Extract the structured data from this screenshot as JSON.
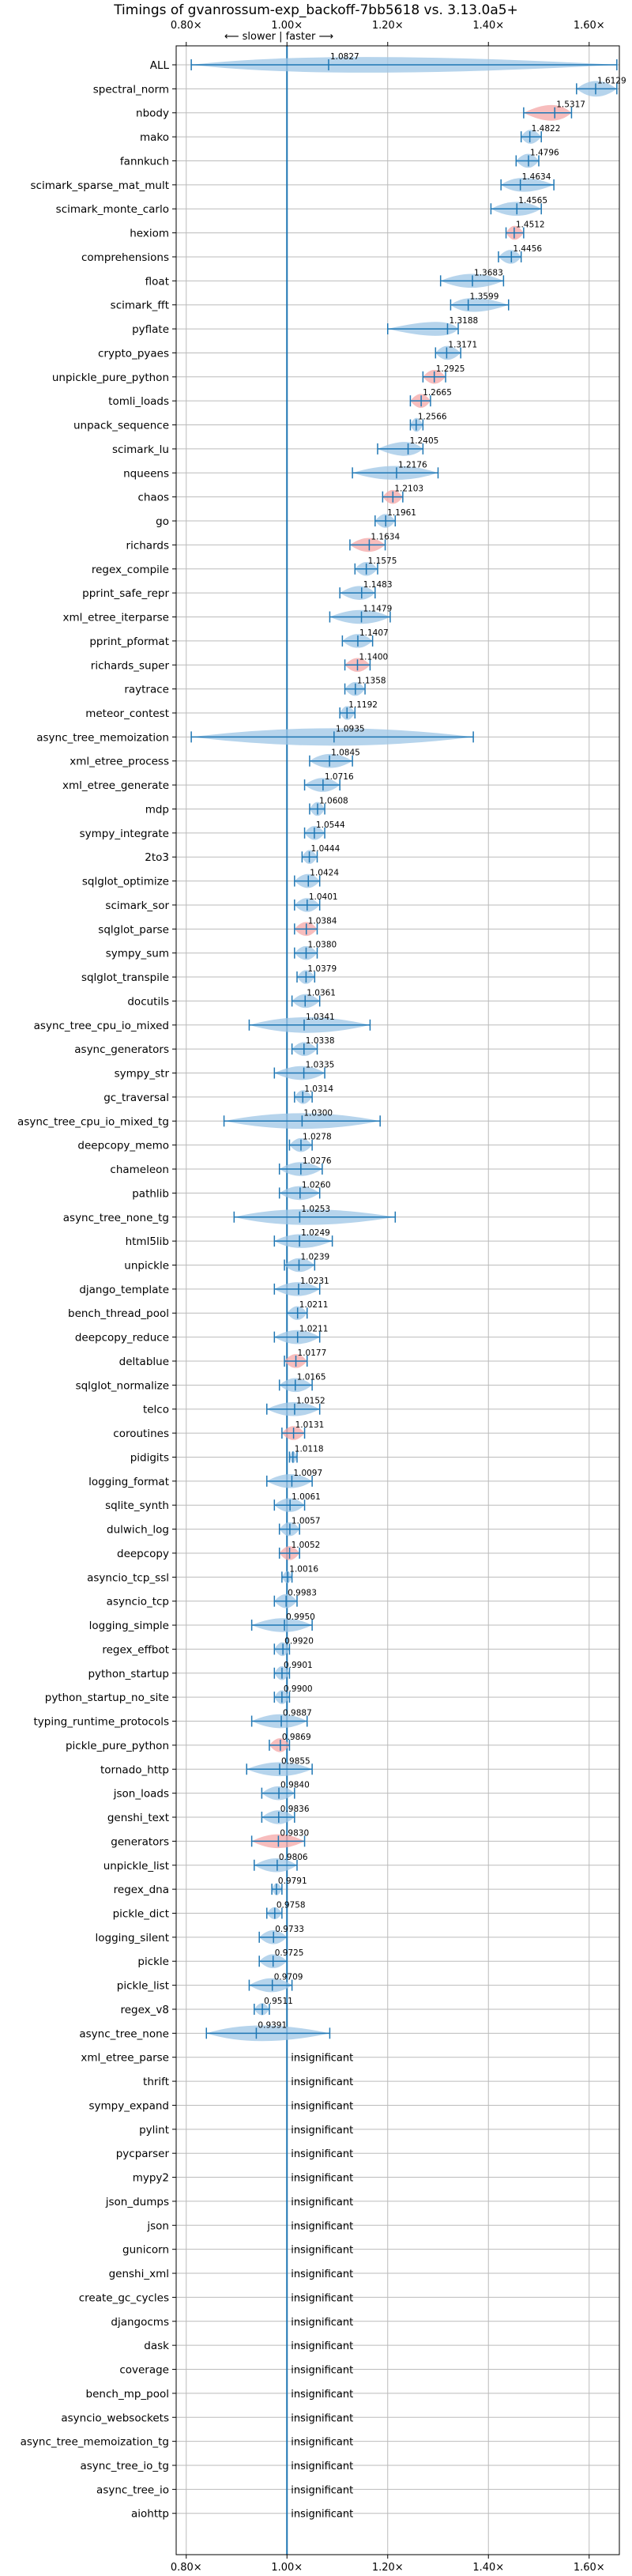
{
  "chart_data": {
    "type": "violin",
    "title": "Timings of gvanrossum-exp_backoff-7bb5618 vs. 3.13.0a5+",
    "direction_label": "⟵ slower | faster ⟶",
    "xlim": [
      0.78,
      1.66
    ],
    "xticks": [
      0.8,
      1.0,
      1.2,
      1.4,
      1.6
    ],
    "xtick_labels": [
      "0.80×",
      "1.00×",
      "1.20×",
      "1.40×",
      "1.60×"
    ],
    "reference_x": 1.0,
    "grid": true,
    "insignificant_label": "insignificant",
    "colors": {
      "faster": "#9ec6e6",
      "slower": "#f4a7a7",
      "whisker": "#1f77b4",
      "reference": "#1f77b4",
      "grid": "#bbbbbb"
    },
    "benchmarks": [
      {
        "name": "ALL",
        "value": 1.0827,
        "label": "1.0827",
        "lo": 0.81,
        "hi": 1.655,
        "width": 0.9,
        "slower": false
      },
      {
        "name": "spectral_norm",
        "value": 1.6129,
        "label": "1.6129",
        "lo": 1.575,
        "hi": 1.655,
        "width": 0.9,
        "slower": false
      },
      {
        "name": "nbody",
        "value": 1.5317,
        "label": "1.5317",
        "lo": 1.47,
        "hi": 1.565,
        "width": 0.9,
        "slower": true
      },
      {
        "name": "mako",
        "value": 1.4822,
        "label": "1.4822",
        "lo": 1.465,
        "hi": 1.505,
        "width": 0.8,
        "slower": false
      },
      {
        "name": "fannkuch",
        "value": 1.4796,
        "label": "1.4796",
        "lo": 1.455,
        "hi": 1.5,
        "width": 0.8,
        "slower": false
      },
      {
        "name": "scimark_sparse_mat_mult",
        "value": 1.4634,
        "label": "1.4634",
        "lo": 1.425,
        "hi": 1.53,
        "width": 0.8,
        "slower": false
      },
      {
        "name": "scimark_monte_carlo",
        "value": 1.4565,
        "label": "1.4565",
        "lo": 1.405,
        "hi": 1.505,
        "width": 0.8,
        "slower": false
      },
      {
        "name": "hexiom",
        "value": 1.4512,
        "label": "1.4512",
        "lo": 1.435,
        "hi": 1.47,
        "width": 0.8,
        "slower": true
      },
      {
        "name": "comprehensions",
        "value": 1.4456,
        "label": "1.4456",
        "lo": 1.42,
        "hi": 1.465,
        "width": 0.8,
        "slower": false
      },
      {
        "name": "float",
        "value": 1.3683,
        "label": "1.3683",
        "lo": 1.305,
        "hi": 1.43,
        "width": 0.8,
        "slower": false
      },
      {
        "name": "scimark_fft",
        "value": 1.3599,
        "label": "1.3599",
        "lo": 1.325,
        "hi": 1.44,
        "width": 0.8,
        "slower": false
      },
      {
        "name": "pyflate",
        "value": 1.3188,
        "label": "1.3188",
        "lo": 1.2,
        "hi": 1.34,
        "width": 0.8,
        "slower": false
      },
      {
        "name": "crypto_pyaes",
        "value": 1.3171,
        "label": "1.3171",
        "lo": 1.295,
        "hi": 1.345,
        "width": 0.8,
        "slower": false
      },
      {
        "name": "unpickle_pure_python",
        "value": 1.2925,
        "label": "1.2925",
        "lo": 1.27,
        "hi": 1.315,
        "width": 0.8,
        "slower": true
      },
      {
        "name": "tomli_loads",
        "value": 1.2665,
        "label": "1.2665",
        "lo": 1.245,
        "hi": 1.285,
        "width": 0.8,
        "slower": true
      },
      {
        "name": "unpack_sequence",
        "value": 1.2566,
        "label": "1.2566",
        "lo": 1.245,
        "hi": 1.27,
        "width": 0.8,
        "slower": false
      },
      {
        "name": "scimark_lu",
        "value": 1.2405,
        "label": "1.2405",
        "lo": 1.18,
        "hi": 1.27,
        "width": 0.8,
        "slower": false
      },
      {
        "name": "nqueens",
        "value": 1.2176,
        "label": "1.2176",
        "lo": 1.13,
        "hi": 1.3,
        "width": 0.8,
        "slower": false
      },
      {
        "name": "chaos",
        "value": 1.2103,
        "label": "1.2103",
        "lo": 1.19,
        "hi": 1.23,
        "width": 0.8,
        "slower": true
      },
      {
        "name": "go",
        "value": 1.1961,
        "label": "1.1961",
        "lo": 1.175,
        "hi": 1.215,
        "width": 0.8,
        "slower": false
      },
      {
        "name": "richards",
        "value": 1.1634,
        "label": "1.1634",
        "lo": 1.125,
        "hi": 1.195,
        "width": 0.8,
        "slower": true
      },
      {
        "name": "regex_compile",
        "value": 1.1575,
        "label": "1.1575",
        "lo": 1.135,
        "hi": 1.18,
        "width": 0.8,
        "slower": false
      },
      {
        "name": "pprint_safe_repr",
        "value": 1.1483,
        "label": "1.1483",
        "lo": 1.105,
        "hi": 1.175,
        "width": 0.8,
        "slower": false
      },
      {
        "name": "xml_etree_iterparse",
        "value": 1.1479,
        "label": "1.1479",
        "lo": 1.085,
        "hi": 1.205,
        "width": 0.8,
        "slower": false
      },
      {
        "name": "pprint_pformat",
        "value": 1.1407,
        "label": "1.1407",
        "lo": 1.11,
        "hi": 1.17,
        "width": 0.8,
        "slower": false
      },
      {
        "name": "richards_super",
        "value": 1.14,
        "label": "1.1400",
        "lo": 1.115,
        "hi": 1.165,
        "width": 0.8,
        "slower": true
      },
      {
        "name": "raytrace",
        "value": 1.1358,
        "label": "1.1358",
        "lo": 1.115,
        "hi": 1.155,
        "width": 0.8,
        "slower": false
      },
      {
        "name": "meteor_contest",
        "value": 1.1192,
        "label": "1.1192",
        "lo": 1.105,
        "hi": 1.135,
        "width": 0.8,
        "slower": false
      },
      {
        "name": "async_tree_memoization",
        "value": 1.0935,
        "label": "1.0935",
        "lo": 0.81,
        "hi": 1.37,
        "width": 1.0,
        "slower": false
      },
      {
        "name": "xml_etree_process",
        "value": 1.0845,
        "label": "1.0845",
        "lo": 1.045,
        "hi": 1.13,
        "width": 0.8,
        "slower": false
      },
      {
        "name": "xml_etree_generate",
        "value": 1.0716,
        "label": "1.0716",
        "lo": 1.035,
        "hi": 1.105,
        "width": 0.8,
        "slower": false
      },
      {
        "name": "mdp",
        "value": 1.0608,
        "label": "1.0608",
        "lo": 1.045,
        "hi": 1.075,
        "width": 0.8,
        "slower": false
      },
      {
        "name": "sympy_integrate",
        "value": 1.0544,
        "label": "1.0544",
        "lo": 1.035,
        "hi": 1.075,
        "width": 0.8,
        "slower": false
      },
      {
        "name": "2to3",
        "value": 1.0444,
        "label": "1.0444",
        "lo": 1.03,
        "hi": 1.06,
        "width": 0.8,
        "slower": false
      },
      {
        "name": "sqlglot_optimize",
        "value": 1.0424,
        "label": "1.0424",
        "lo": 1.015,
        "hi": 1.065,
        "width": 0.8,
        "slower": false
      },
      {
        "name": "scimark_sor",
        "value": 1.0401,
        "label": "1.0401",
        "lo": 1.015,
        "hi": 1.065,
        "width": 0.8,
        "slower": false
      },
      {
        "name": "sqlglot_parse",
        "value": 1.0384,
        "label": "1.0384",
        "lo": 1.015,
        "hi": 1.06,
        "width": 0.8,
        "slower": true
      },
      {
        "name": "sympy_sum",
        "value": 1.038,
        "label": "1.0380",
        "lo": 1.015,
        "hi": 1.06,
        "width": 0.8,
        "slower": false
      },
      {
        "name": "sqlglot_transpile",
        "value": 1.0379,
        "label": "1.0379",
        "lo": 1.02,
        "hi": 1.055,
        "width": 0.8,
        "slower": false
      },
      {
        "name": "docutils",
        "value": 1.0361,
        "label": "1.0361",
        "lo": 1.01,
        "hi": 1.065,
        "width": 0.8,
        "slower": false
      },
      {
        "name": "async_tree_cpu_io_mixed",
        "value": 1.0341,
        "label": "1.0341",
        "lo": 0.925,
        "hi": 1.165,
        "width": 0.9,
        "slower": false
      },
      {
        "name": "async_generators",
        "value": 1.0338,
        "label": "1.0338",
        "lo": 1.01,
        "hi": 1.06,
        "width": 0.8,
        "slower": false
      },
      {
        "name": "sympy_str",
        "value": 1.0335,
        "label": "1.0335",
        "lo": 0.975,
        "hi": 1.075,
        "width": 0.8,
        "slower": false
      },
      {
        "name": "gc_traversal",
        "value": 1.0314,
        "label": "1.0314",
        "lo": 1.015,
        "hi": 1.05,
        "width": 0.8,
        "slower": false
      },
      {
        "name": "async_tree_cpu_io_mixed_tg",
        "value": 1.03,
        "label": "1.0300",
        "lo": 0.875,
        "hi": 1.185,
        "width": 0.9,
        "slower": false
      },
      {
        "name": "deepcopy_memo",
        "value": 1.0278,
        "label": "1.0278",
        "lo": 1.005,
        "hi": 1.05,
        "width": 0.8,
        "slower": false
      },
      {
        "name": "chameleon",
        "value": 1.0276,
        "label": "1.0276",
        "lo": 0.985,
        "hi": 1.07,
        "width": 0.8,
        "slower": false
      },
      {
        "name": "pathlib",
        "value": 1.026,
        "label": "1.0260",
        "lo": 0.985,
        "hi": 1.065,
        "width": 0.8,
        "slower": false
      },
      {
        "name": "async_tree_none_tg",
        "value": 1.0253,
        "label": "1.0253",
        "lo": 0.895,
        "hi": 1.215,
        "width": 0.9,
        "slower": false
      },
      {
        "name": "html5lib",
        "value": 1.0249,
        "label": "1.0249",
        "lo": 0.975,
        "hi": 1.09,
        "width": 0.8,
        "slower": false
      },
      {
        "name": "unpickle",
        "value": 1.0239,
        "label": "1.0239",
        "lo": 0.995,
        "hi": 1.055,
        "width": 0.8,
        "slower": false
      },
      {
        "name": "django_template",
        "value": 1.0231,
        "label": "1.0231",
        "lo": 0.975,
        "hi": 1.065,
        "width": 0.8,
        "slower": false
      },
      {
        "name": "bench_thread_pool",
        "value": 1.0211,
        "label": "1.0211",
        "lo": 1.0,
        "hi": 1.04,
        "width": 0.8,
        "slower": false
      },
      {
        "name": "deepcopy_reduce",
        "value": 1.0211,
        "label": "1.0211",
        "lo": 0.975,
        "hi": 1.065,
        "width": 0.8,
        "slower": false
      },
      {
        "name": "deltablue",
        "value": 1.0177,
        "label": "1.0177",
        "lo": 0.995,
        "hi": 1.04,
        "width": 0.8,
        "slower": true
      },
      {
        "name": "sqlglot_normalize",
        "value": 1.0165,
        "label": "1.0165",
        "lo": 0.985,
        "hi": 1.05,
        "width": 0.8,
        "slower": false
      },
      {
        "name": "telco",
        "value": 1.0152,
        "label": "1.0152",
        "lo": 0.96,
        "hi": 1.065,
        "width": 0.8,
        "slower": false
      },
      {
        "name": "coroutines",
        "value": 1.0131,
        "label": "1.0131",
        "lo": 0.99,
        "hi": 1.035,
        "width": 0.8,
        "slower": true
      },
      {
        "name": "pidigits",
        "value": 1.0118,
        "label": "1.0118",
        "lo": 1.005,
        "hi": 1.02,
        "width": 0.7,
        "slower": false
      },
      {
        "name": "logging_format",
        "value": 1.0097,
        "label": "1.0097",
        "lo": 0.96,
        "hi": 1.05,
        "width": 0.8,
        "slower": false
      },
      {
        "name": "sqlite_synth",
        "value": 1.0061,
        "label": "1.0061",
        "lo": 0.975,
        "hi": 1.035,
        "width": 0.8,
        "slower": false
      },
      {
        "name": "dulwich_log",
        "value": 1.0057,
        "label": "1.0057",
        "lo": 0.985,
        "hi": 1.025,
        "width": 0.8,
        "slower": false
      },
      {
        "name": "deepcopy",
        "value": 1.0052,
        "label": "1.0052",
        "lo": 0.985,
        "hi": 1.025,
        "width": 0.8,
        "slower": true
      },
      {
        "name": "asyncio_tcp_ssl",
        "value": 1.0016,
        "label": "1.0016",
        "lo": 0.99,
        "hi": 1.01,
        "width": 0.7,
        "slower": false
      },
      {
        "name": "asyncio_tcp",
        "value": 0.9983,
        "label": "0.9983",
        "lo": 0.975,
        "hi": 1.02,
        "width": 0.8,
        "slower": false
      },
      {
        "name": "logging_simple",
        "value": 0.995,
        "label": "0.9950",
        "lo": 0.93,
        "hi": 1.05,
        "width": 0.8,
        "slower": false
      },
      {
        "name": "regex_effbot",
        "value": 0.992,
        "label": "0.9920",
        "lo": 0.975,
        "hi": 1.005,
        "width": 0.8,
        "slower": false
      },
      {
        "name": "python_startup",
        "value": 0.9901,
        "label": "0.9901",
        "lo": 0.975,
        "hi": 1.005,
        "width": 0.8,
        "slower": false
      },
      {
        "name": "python_startup_no_site",
        "value": 0.99,
        "label": "0.9900",
        "lo": 0.975,
        "hi": 1.005,
        "width": 0.8,
        "slower": false
      },
      {
        "name": "typing_runtime_protocols",
        "value": 0.9887,
        "label": "0.9887",
        "lo": 0.93,
        "hi": 1.04,
        "width": 0.8,
        "slower": false
      },
      {
        "name": "pickle_pure_python",
        "value": 0.9869,
        "label": "0.9869",
        "lo": 0.965,
        "hi": 1.005,
        "width": 0.8,
        "slower": true
      },
      {
        "name": "tornado_http",
        "value": 0.9855,
        "label": "0.9855",
        "lo": 0.92,
        "hi": 1.05,
        "width": 0.8,
        "slower": false
      },
      {
        "name": "json_loads",
        "value": 0.984,
        "label": "0.9840",
        "lo": 0.95,
        "hi": 1.015,
        "width": 0.8,
        "slower": false
      },
      {
        "name": "genshi_text",
        "value": 0.9836,
        "label": "0.9836",
        "lo": 0.95,
        "hi": 1.015,
        "width": 0.8,
        "slower": false
      },
      {
        "name": "generators",
        "value": 0.983,
        "label": "0.9830",
        "lo": 0.93,
        "hi": 1.035,
        "width": 0.8,
        "slower": true
      },
      {
        "name": "unpickle_list",
        "value": 0.9806,
        "label": "0.9806",
        "lo": 0.935,
        "hi": 1.02,
        "width": 0.8,
        "slower": false
      },
      {
        "name": "regex_dna",
        "value": 0.9791,
        "label": "0.9791",
        "lo": 0.97,
        "hi": 0.99,
        "width": 0.7,
        "slower": false
      },
      {
        "name": "pickle_dict",
        "value": 0.9758,
        "label": "0.9758",
        "lo": 0.96,
        "hi": 0.99,
        "width": 0.7,
        "slower": false
      },
      {
        "name": "logging_silent",
        "value": 0.9733,
        "label": "0.9733",
        "lo": 0.945,
        "hi": 1.0,
        "width": 0.8,
        "slower": false
      },
      {
        "name": "pickle",
        "value": 0.9725,
        "label": "0.9725",
        "lo": 0.945,
        "hi": 1.0,
        "width": 0.8,
        "slower": false
      },
      {
        "name": "pickle_list",
        "value": 0.9709,
        "label": "0.9709",
        "lo": 0.925,
        "hi": 1.01,
        "width": 0.8,
        "slower": false
      },
      {
        "name": "regex_v8",
        "value": 0.9511,
        "label": "0.9511",
        "lo": 0.935,
        "hi": 0.965,
        "width": 0.7,
        "slower": false
      },
      {
        "name": "async_tree_none",
        "value": 0.9391,
        "label": "0.9391",
        "lo": 0.84,
        "hi": 1.085,
        "width": 0.9,
        "slower": false
      },
      {
        "name": "xml_etree_parse",
        "insignificant": true
      },
      {
        "name": "thrift",
        "insignificant": true
      },
      {
        "name": "sympy_expand",
        "insignificant": true
      },
      {
        "name": "pylint",
        "insignificant": true
      },
      {
        "name": "pycparser",
        "insignificant": true
      },
      {
        "name": "mypy2",
        "insignificant": true
      },
      {
        "name": "json_dumps",
        "insignificant": true
      },
      {
        "name": "json",
        "insignificant": true
      },
      {
        "name": "gunicorn",
        "insignificant": true
      },
      {
        "name": "genshi_xml",
        "insignificant": true
      },
      {
        "name": "create_gc_cycles",
        "insignificant": true
      },
      {
        "name": "djangocms",
        "insignificant": true
      },
      {
        "name": "dask",
        "insignificant": true
      },
      {
        "name": "coverage",
        "insignificant": true
      },
      {
        "name": "bench_mp_pool",
        "insignificant": true
      },
      {
        "name": "asyncio_websockets",
        "insignificant": true
      },
      {
        "name": "async_tree_memoization_tg",
        "insignificant": true
      },
      {
        "name": "async_tree_io_tg",
        "insignificant": true
      },
      {
        "name": "async_tree_io",
        "insignificant": true
      },
      {
        "name": "aiohttp",
        "insignificant": true
      }
    ]
  }
}
